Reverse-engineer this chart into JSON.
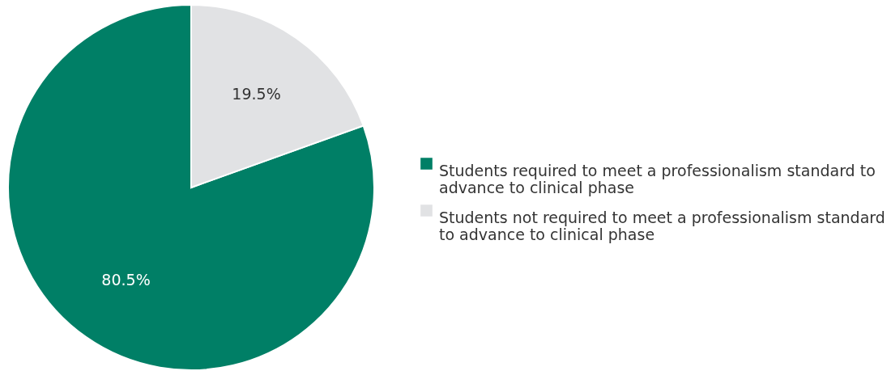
{
  "chart_data": {
    "type": "pie",
    "categories": [
      "Students required to meet a professionalism standard to advance to clinical phase",
      "Students not required to meet a professionalism standard to advance to clinical phase"
    ],
    "values": [
      80.5,
      19.5
    ],
    "colors": [
      "#007f66",
      "#e1e2e4"
    ],
    "value_labels": [
      "80.5%",
      "19.5%"
    ],
    "legend": "right"
  }
}
